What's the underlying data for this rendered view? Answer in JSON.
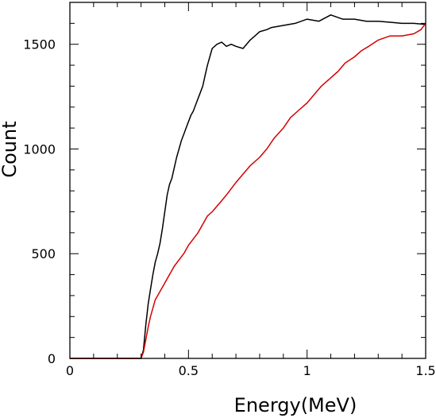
{
  "chart_data": {
    "type": "line",
    "title": "",
    "xlabel": "Energy(MeV)",
    "ylabel": "Count",
    "xlim": [
      0,
      1.5
    ],
    "ylim": [
      0,
      1700
    ],
    "x_ticks": [
      0,
      0.5,
      1,
      1.5
    ],
    "x_tick_labels": [
      "0",
      "0.5",
      "1",
      "1.5"
    ],
    "y_ticks": [
      0,
      500,
      1000,
      1500
    ],
    "y_tick_labels": [
      "0",
      "500",
      "1000",
      "1500"
    ],
    "grid": false,
    "legend": "none",
    "series": [
      {
        "color": "#000000",
        "x": [
          0,
          0.3,
          0.31,
          0.32,
          0.33,
          0.34,
          0.35,
          0.36,
          0.37,
          0.38,
          0.39,
          0.4,
          0.41,
          0.42,
          0.43,
          0.44,
          0.45,
          0.46,
          0.47,
          0.48,
          0.49,
          0.5,
          0.51,
          0.52,
          0.53,
          0.54,
          0.55,
          0.56,
          0.57,
          0.58,
          0.59,
          0.6,
          0.62,
          0.64,
          0.66,
          0.68,
          0.7,
          0.73,
          0.76,
          0.78,
          0.8,
          0.83,
          0.85,
          0.9,
          0.95,
          1.0,
          1.05,
          1.1,
          1.15,
          1.2,
          1.25,
          1.3,
          1.35,
          1.4,
          1.45,
          1.5
        ],
        "y": [
          0,
          0,
          40,
          160,
          260,
          330,
          400,
          460,
          500,
          550,
          620,
          700,
          780,
          830,
          860,
          910,
          960,
          1000,
          1040,
          1070,
          1100,
          1130,
          1160,
          1180,
          1210,
          1240,
          1270,
          1300,
          1350,
          1400,
          1440,
          1480,
          1500,
          1510,
          1490,
          1500,
          1490,
          1480,
          1520,
          1540,
          1560,
          1570,
          1580,
          1590,
          1600,
          1620,
          1610,
          1640,
          1620,
          1620,
          1610,
          1610,
          1605,
          1600,
          1600,
          1595
        ]
      },
      {
        "color": "#d40000",
        "x": [
          0,
          0.3,
          0.31,
          0.32,
          0.33,
          0.34,
          0.35,
          0.36,
          0.38,
          0.4,
          0.42,
          0.44,
          0.46,
          0.48,
          0.5,
          0.52,
          0.54,
          0.56,
          0.58,
          0.6,
          0.63,
          0.66,
          0.7,
          0.73,
          0.76,
          0.8,
          0.83,
          0.86,
          0.9,
          0.93,
          0.96,
          1.0,
          1.03,
          1.06,
          1.1,
          1.13,
          1.16,
          1.2,
          1.23,
          1.26,
          1.3,
          1.35,
          1.4,
          1.45,
          1.48,
          1.5
        ],
        "y": [
          0,
          0,
          30,
          90,
          150,
          200,
          240,
          280,
          320,
          360,
          400,
          440,
          470,
          500,
          540,
          570,
          600,
          640,
          680,
          700,
          740,
          780,
          840,
          880,
          920,
          960,
          1000,
          1050,
          1100,
          1150,
          1180,
          1220,
          1260,
          1300,
          1340,
          1370,
          1410,
          1440,
          1470,
          1490,
          1520,
          1540,
          1540,
          1550,
          1570,
          1600
        ]
      }
    ]
  }
}
